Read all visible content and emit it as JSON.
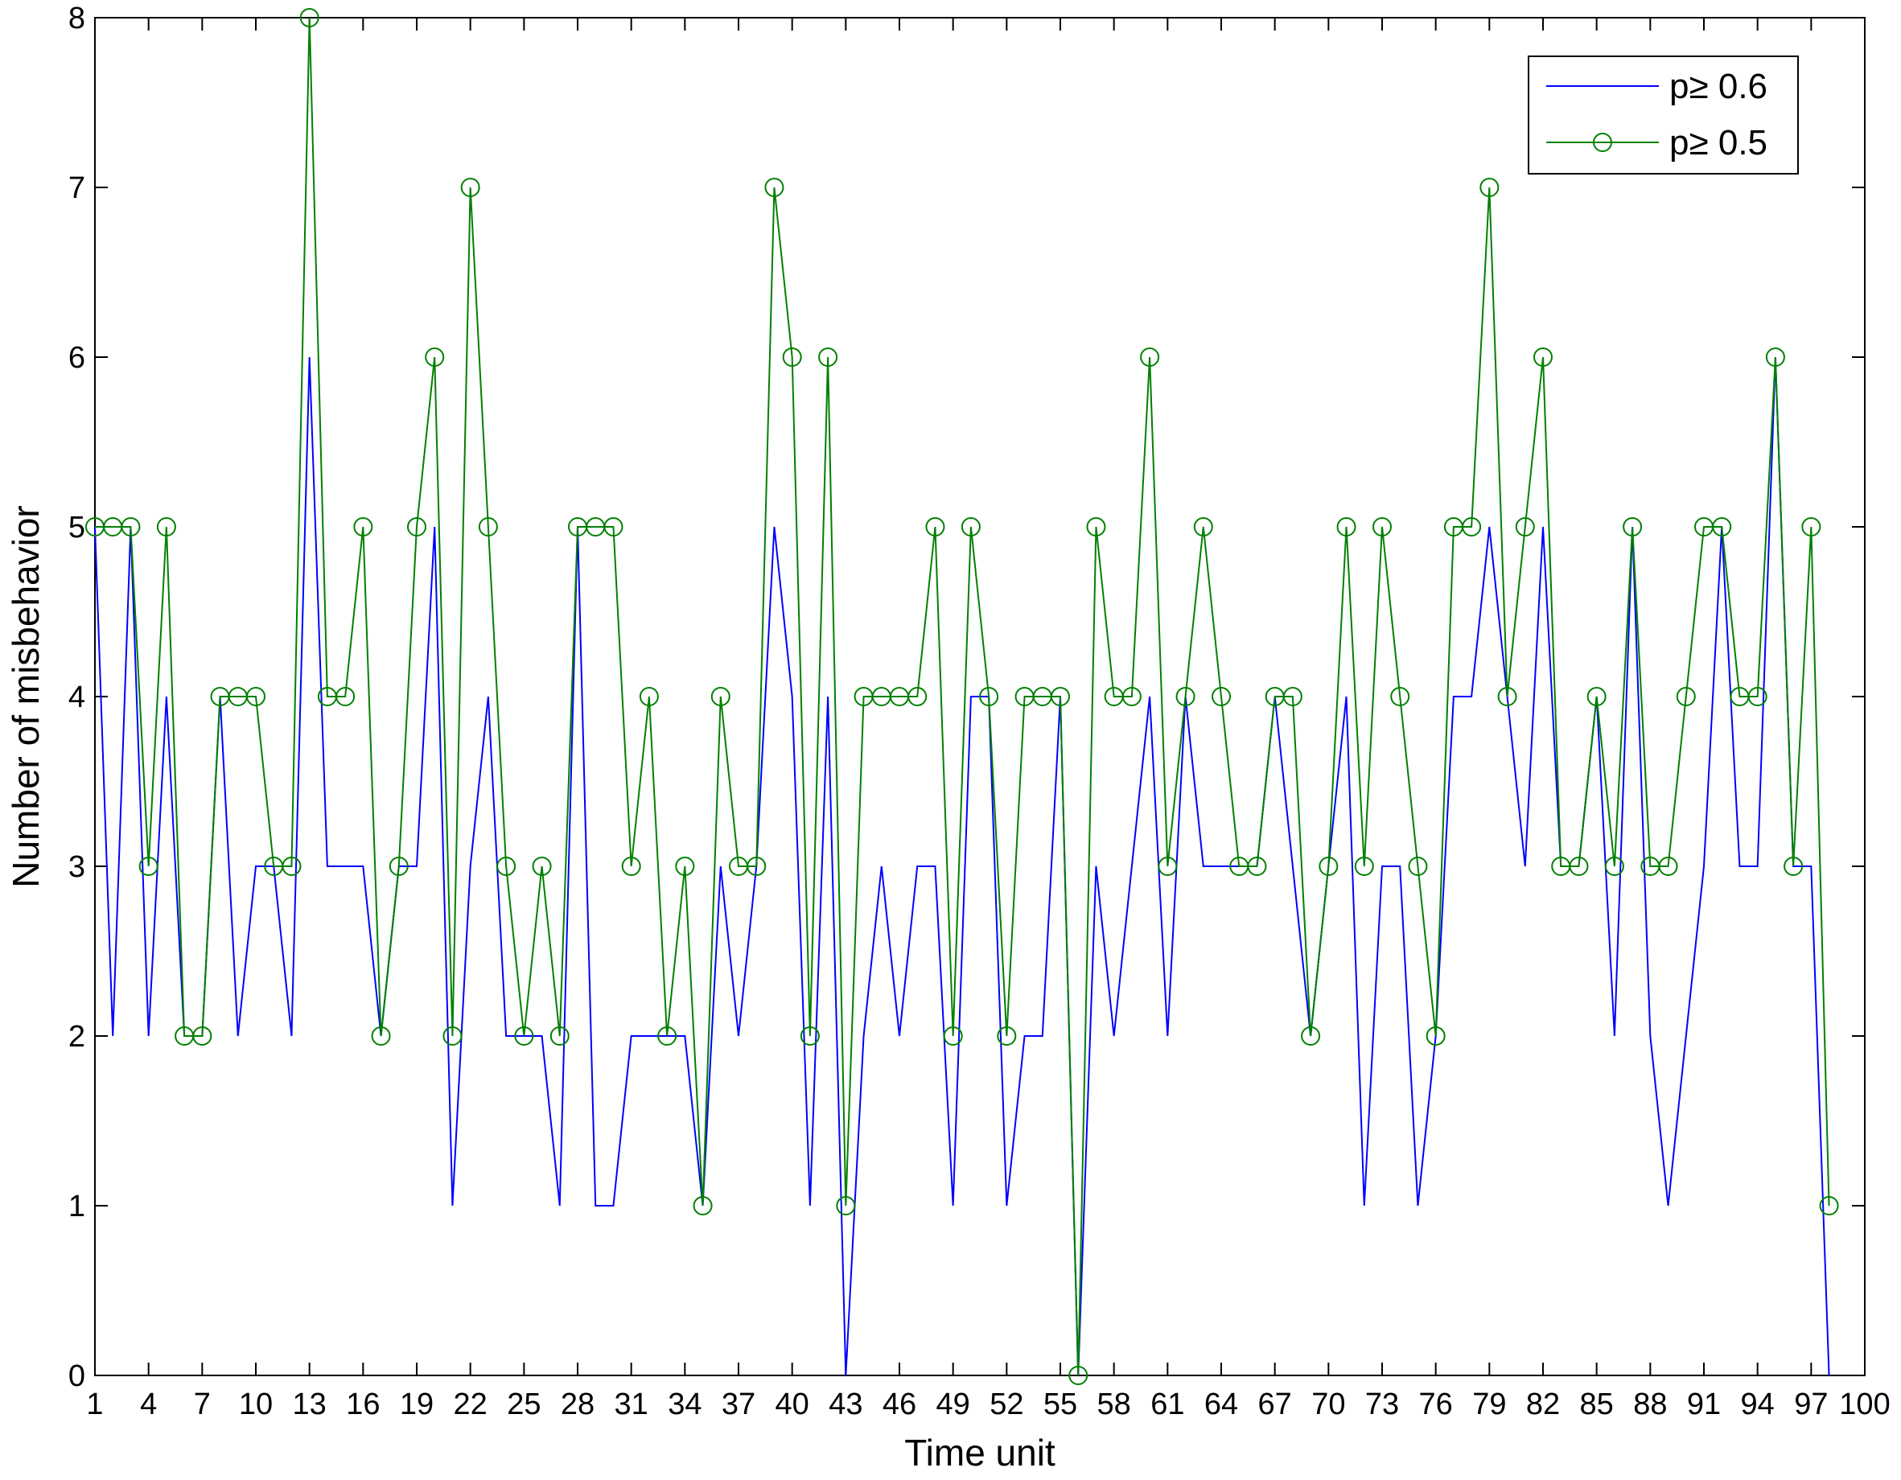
{
  "chart_data": {
    "type": "line",
    "title": "",
    "xlabel": "Time unit",
    "ylabel": "Number of misbehavior",
    "xlim": [
      1,
      100
    ],
    "ylim": [
      0,
      8
    ],
    "grid": false,
    "legend_position": "top-right",
    "x_ticks": [
      "1",
      "4",
      "7",
      "10",
      "13",
      "16",
      "19",
      "22",
      "25",
      "28",
      "31",
      "34",
      "37",
      "40",
      "43",
      "46",
      "49",
      "52",
      "55",
      "58",
      "61",
      "64",
      "67",
      "70",
      "73",
      "76",
      "79",
      "82",
      "85",
      "88",
      "91",
      "94",
      "97",
      "100"
    ],
    "y_ticks": [
      "0",
      "1",
      "2",
      "3",
      "4",
      "5",
      "6",
      "7",
      "8"
    ],
    "x": [
      1,
      2,
      3,
      4,
      5,
      6,
      7,
      8,
      9,
      10,
      11,
      12,
      13,
      14,
      15,
      16,
      17,
      18,
      19,
      20,
      21,
      22,
      23,
      24,
      25,
      26,
      27,
      28,
      29,
      30,
      31,
      32,
      33,
      34,
      35,
      36,
      37,
      38,
      39,
      40,
      41,
      42,
      43,
      44,
      45,
      46,
      47,
      48,
      49,
      50,
      51,
      52,
      53,
      54,
      55,
      56,
      57,
      58,
      59,
      60,
      61,
      62,
      63,
      64,
      65,
      66,
      67,
      68,
      69,
      70,
      71,
      72,
      73,
      74,
      75,
      76,
      77,
      78,
      79,
      80,
      81,
      82,
      83,
      84,
      85,
      86,
      87,
      88,
      89,
      90,
      91,
      92,
      93,
      94,
      95,
      96,
      97,
      98
    ],
    "series": [
      {
        "name": "p≥ 0.6",
        "color": "#0000ff",
        "marker": "none",
        "values": [
          5,
          2,
          5,
          2,
          4,
          2,
          2,
          4,
          2,
          3,
          3,
          2,
          6,
          3,
          3,
          3,
          2,
          3,
          3,
          5,
          1,
          3,
          4,
          2,
          2,
          2,
          1,
          5,
          1,
          1,
          2,
          2,
          2,
          2,
          1,
          3,
          2,
          3,
          5,
          4,
          1,
          4,
          0,
          2,
          3,
          2,
          3,
          3,
          1,
          4,
          4,
          1,
          2,
          2,
          4,
          0,
          3,
          2,
          3,
          4,
          2,
          4,
          3,
          3,
          3,
          3,
          4,
          3,
          2,
          3,
          4,
          1,
          3,
          3,
          1,
          2,
          4,
          4,
          5,
          4,
          3,
          5,
          3,
          3,
          4,
          2,
          5,
          2,
          1,
          2,
          3,
          5,
          3,
          3,
          6,
          3,
          3,
          0
        ]
      },
      {
        "name": "p≥ 0.5",
        "color": "#008000",
        "marker": "circle",
        "values": [
          5,
          5,
          5,
          3,
          5,
          2,
          2,
          4,
          4,
          4,
          3,
          3,
          8,
          4,
          4,
          5,
          2,
          3,
          5,
          6,
          2,
          7,
          5,
          3,
          2,
          3,
          2,
          5,
          5,
          5,
          3,
          4,
          2,
          3,
          1,
          4,
          3,
          3,
          7,
          6,
          2,
          6,
          1,
          4,
          4,
          4,
          4,
          5,
          2,
          5,
          4,
          2,
          4,
          4,
          4,
          0,
          5,
          4,
          4,
          6,
          3,
          4,
          5,
          4,
          3,
          3,
          4,
          4,
          2,
          3,
          5,
          3,
          5,
          4,
          3,
          2,
          5,
          5,
          7,
          4,
          5,
          6,
          3,
          3,
          4,
          3,
          5,
          3,
          3,
          4,
          5,
          5,
          4,
          4,
          6,
          3,
          5,
          1
        ]
      }
    ]
  }
}
